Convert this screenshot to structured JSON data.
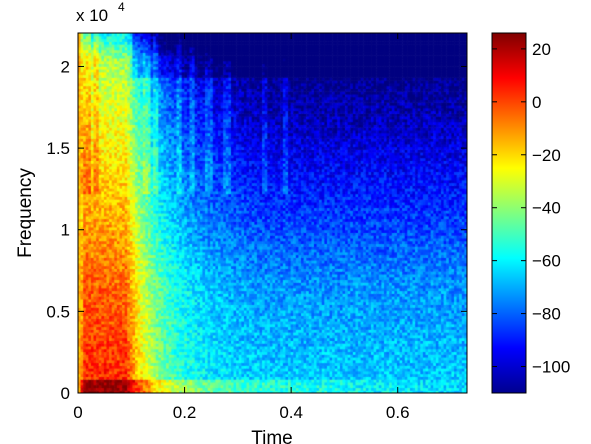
{
  "chart_data": {
    "type": "heatmap",
    "xlabel": "Time",
    "ylabel": "Frequency",
    "xlim": [
      0,
      0.73
    ],
    "ylim": [
      0,
      22050
    ],
    "x_ticks": [
      0,
      0.2,
      0.4,
      0.6
    ],
    "x_tick_labels": [
      "0",
      "0.2",
      "0.4",
      "0.6"
    ],
    "y_ticks": [
      0,
      5000,
      10000,
      15000,
      20000
    ],
    "y_tick_labels": [
      "0",
      "0.5",
      "1",
      "1.5",
      "2"
    ],
    "y_exponent": {
      "base": "x 10",
      "power": "4"
    },
    "colorbar": {
      "range": [
        -110,
        26
      ],
      "ticks": [
        20,
        0,
        -20,
        -40,
        -60,
        -80,
        -100
      ],
      "tick_labels": [
        "20",
        "0",
        "−20",
        "−40",
        "−60",
        "−80",
        "−100"
      ],
      "colormap": "jet"
    }
  }
}
